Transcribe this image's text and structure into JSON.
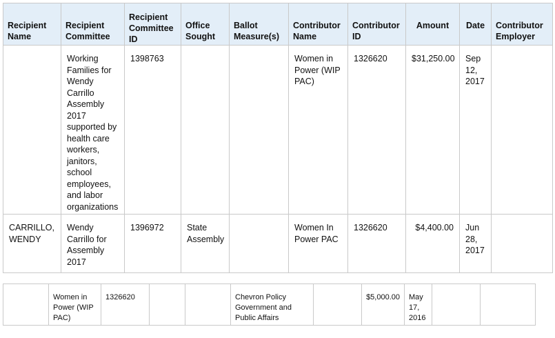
{
  "headers": {
    "recipient_name": "Recipient Name",
    "recipient_committee": "Recipient Committee",
    "recipient_committee_id": "Recipient Committee ID",
    "office_sought": "Office Sought",
    "ballot_measures": "Ballot Measure(s)",
    "contributor_name": "Contributor Name",
    "contributor_id": "Contributor ID",
    "amount": "Amount",
    "date": "Date",
    "contributor_employer": "Contributor Employer"
  },
  "rows": [
    {
      "recipient_name": "",
      "recipient_committee": "Working Families for Wendy Carrillo Assembly 2017 supported by health care workers, janitors, school employees, and labor organizations",
      "recipient_committee_id": "1398763",
      "office_sought": "",
      "ballot_measures": "",
      "contributor_name": "Women in Power (WIP PAC)",
      "contributor_id": "1326620",
      "amount": "$31,250.00",
      "date": "Sep 12, 2017",
      "contributor_employer": ""
    },
    {
      "recipient_name": "CARRILLO, WENDY",
      "recipient_committee": "Wendy Carrillo for Assembly 2017",
      "recipient_committee_id": "1396972",
      "office_sought": "State Assembly",
      "ballot_measures": "",
      "contributor_name": "Women In Power PAC",
      "contributor_id": "1326620",
      "amount": "$4,400.00",
      "date": "Jun 28, 2017",
      "contributor_employer": ""
    }
  ],
  "second_table": {
    "row": {
      "c1": "",
      "c2": "Women in Power (WIP PAC)",
      "c3": "1326620",
      "c4": "",
      "c5": "",
      "c6": "Chevron Policy Government and Public Affairs",
      "c7": "",
      "c8": "$5,000.00",
      "c9": "May 17, 2016",
      "c10": "",
      "c11": ""
    }
  }
}
